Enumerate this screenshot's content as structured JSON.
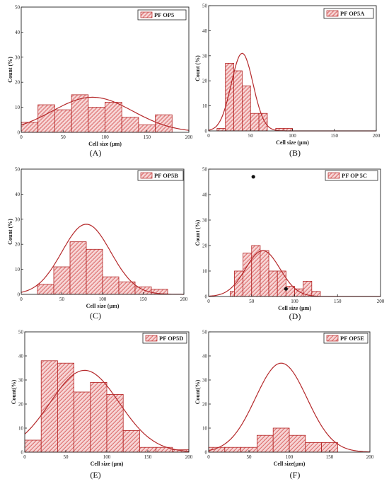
{
  "colors": {
    "bar_stroke": "#b22222",
    "hatch": "#d44a4a",
    "bar_fill": "#f6d4d4",
    "curve": "#b5292b",
    "axis": "#222222"
  },
  "chart_data": [
    {
      "type": "bar",
      "panel": "(A)",
      "legend": "PF OP5",
      "xlabel": "Cell size (µm)",
      "ylabel": "Count (%)",
      "xlim": [
        0,
        200
      ],
      "ylim": [
        0,
        50
      ],
      "xticks": [
        0,
        50,
        100,
        150,
        200
      ],
      "yticks": [
        0,
        10,
        20,
        30,
        40,
        50
      ],
      "bins": [
        [
          0,
          20,
          4
        ],
        [
          20,
          40,
          11
        ],
        [
          40,
          60,
          9
        ],
        [
          60,
          80,
          15
        ],
        [
          80,
          100,
          10
        ],
        [
          100,
          120,
          12
        ],
        [
          120,
          140,
          6
        ],
        [
          140,
          160,
          3
        ],
        [
          160,
          180,
          7
        ]
      ],
      "curve": {
        "mean": 85,
        "sd": 48,
        "peak": 14
      },
      "markers": []
    },
    {
      "type": "bar",
      "panel": "(B)",
      "legend": "PF OP5A",
      "xlabel": "Cell size (µm)",
      "ylabel": "Count (%)",
      "xlim": [
        0,
        200
      ],
      "ylim": [
        0,
        50
      ],
      "xticks": [
        0,
        50,
        100,
        150,
        200
      ],
      "yticks": [
        0,
        10,
        20,
        30,
        40,
        50
      ],
      "bins": [
        [
          10,
          20,
          1
        ],
        [
          20,
          30,
          27
        ],
        [
          30,
          40,
          24
        ],
        [
          40,
          50,
          18
        ],
        [
          50,
          60,
          7
        ],
        [
          60,
          70,
          7
        ],
        [
          80,
          90,
          1
        ],
        [
          90,
          100,
          1
        ]
      ],
      "curve": {
        "mean": 40,
        "sd": 13,
        "peak": 31
      },
      "markers": []
    },
    {
      "type": "bar",
      "panel": "(C)",
      "legend": "PF OP5B",
      "xlabel": "Cell size (µm)",
      "ylabel": "Count (%)",
      "xlim": [
        0,
        200
      ],
      "ylim": [
        0,
        50
      ],
      "xticks": [
        0,
        50,
        100,
        150,
        200
      ],
      "yticks": [
        0,
        10,
        20,
        30,
        40,
        50
      ],
      "bins": [
        [
          20,
          40,
          4
        ],
        [
          40,
          60,
          11
        ],
        [
          60,
          80,
          21
        ],
        [
          80,
          100,
          18
        ],
        [
          100,
          120,
          7
        ],
        [
          120,
          140,
          5
        ],
        [
          140,
          160,
          3
        ],
        [
          160,
          180,
          2
        ]
      ],
      "curve": {
        "mean": 80,
        "sd": 30,
        "peak": 28
      },
      "markers": []
    },
    {
      "type": "bar",
      "panel": "(D)",
      "legend": "PF OP 5C",
      "xlabel": "Cell size (µm)",
      "ylabel": "Count (%)",
      "xlim": [
        0,
        200
      ],
      "ylim": [
        0,
        50
      ],
      "xticks": [
        0,
        50,
        100,
        150,
        200
      ],
      "yticks": [
        0,
        10,
        20,
        30,
        40,
        50
      ],
      "bins": [
        [
          25,
          30,
          2
        ],
        [
          30,
          40,
          10
        ],
        [
          40,
          50,
          17
        ],
        [
          50,
          60,
          20
        ],
        [
          60,
          70,
          18
        ],
        [
          70,
          80,
          10
        ],
        [
          80,
          90,
          10
        ],
        [
          90,
          100,
          4
        ],
        [
          100,
          110,
          3
        ],
        [
          110,
          120,
          6
        ],
        [
          120,
          130,
          2
        ]
      ],
      "curve": {
        "mean": 63,
        "sd": 20,
        "peak": 18
      },
      "markers": [
        {
          "x": 52,
          "y": 47
        },
        {
          "x": 90,
          "y": 3
        }
      ]
    },
    {
      "type": "bar",
      "panel": "(E)",
      "legend": "PF OP5D",
      "xlabel": "Cell size (µm)",
      "ylabel": "Count(%)",
      "xlim": [
        0,
        200
      ],
      "ylim": [
        0,
        50
      ],
      "xticks": [
        0,
        50,
        100,
        150,
        200
      ],
      "yticks": [
        0,
        10,
        20,
        30,
        40,
        50
      ],
      "bins": [
        [
          0,
          20,
          5
        ],
        [
          20,
          40,
          38
        ],
        [
          40,
          60,
          37
        ],
        [
          60,
          80,
          25
        ],
        [
          80,
          100,
          29
        ],
        [
          100,
          120,
          24
        ],
        [
          120,
          140,
          9
        ],
        [
          140,
          160,
          2
        ],
        [
          160,
          180,
          2
        ],
        [
          180,
          200,
          1
        ]
      ],
      "curve": {
        "mean": 73,
        "sd": 42,
        "peak": 34
      },
      "markers": []
    },
    {
      "type": "bar",
      "panel": "(F)",
      "legend": "PF OP5E",
      "xlabel": "Cell size(µm)",
      "ylabel": "Count(%)",
      "xlim": [
        0,
        200
      ],
      "ylim": [
        0,
        50
      ],
      "xticks": [
        0,
        50,
        100,
        150,
        200
      ],
      "yticks": [
        0,
        10,
        20,
        30,
        40,
        50
      ],
      "bins": [
        [
          0,
          20,
          2
        ],
        [
          20,
          40,
          2
        ],
        [
          40,
          60,
          2
        ],
        [
          60,
          80,
          7
        ],
        [
          80,
          100,
          10
        ],
        [
          100,
          120,
          7
        ],
        [
          120,
          140,
          4
        ],
        [
          140,
          160,
          4
        ]
      ],
      "curve": {
        "mean": 90,
        "sd": 32,
        "peak": 37
      },
      "markers": []
    }
  ]
}
